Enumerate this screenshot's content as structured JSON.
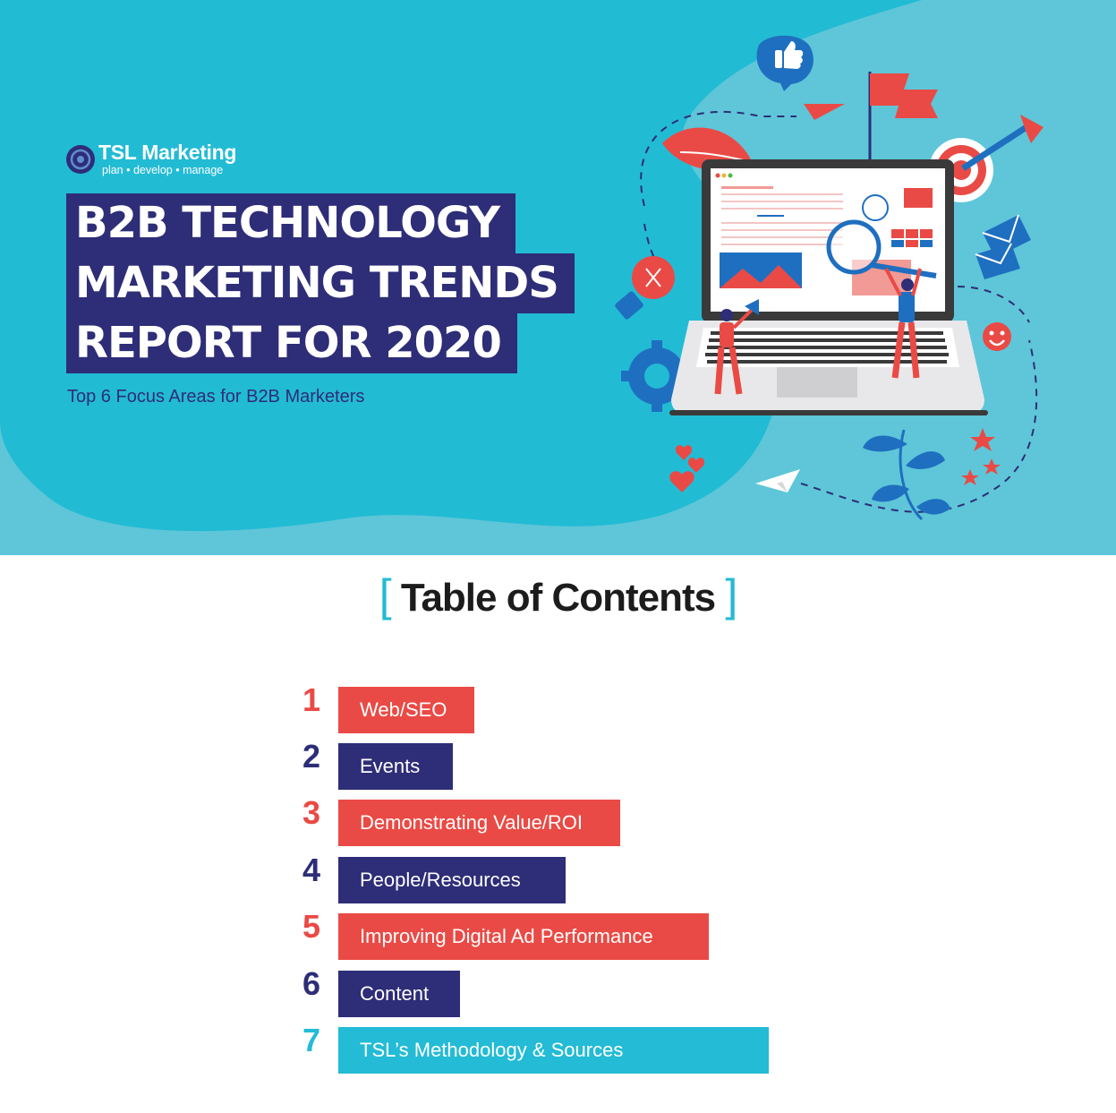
{
  "brand": {
    "name": "TSL Marketing",
    "tagline": "plan • develop • manage"
  },
  "hero": {
    "title_lines": [
      "B2B TECHNOLOGY",
      "MARKETING TRENDS",
      "REPORT FOR 2020"
    ],
    "subtitle": "Top 6 Focus Areas for B2B Marketers"
  },
  "toc": {
    "heading": "Table of Contents",
    "items": [
      {
        "number": "1",
        "label": "Web/SEO",
        "color": "#ea4a45",
        "number_color": "#ea4a45"
      },
      {
        "number": "2",
        "label": "Events",
        "color": "#2e2d77",
        "number_color": "#2e2d77"
      },
      {
        "number": "3",
        "label": "Demonstrating Value/ROI",
        "color": "#ea4a45",
        "number_color": "#ea4a45"
      },
      {
        "number": "4",
        "label": "People/Resources",
        "color": "#2e2d77",
        "number_color": "#2e2d77"
      },
      {
        "number": "5",
        "label": "Improving Digital Ad Performance",
        "color": "#ea4a45",
        "number_color": "#ea4a45"
      },
      {
        "number": "6",
        "label": "Content",
        "color": "#2e2d77",
        "number_color": "#2e2d77"
      },
      {
        "number": "7",
        "label": "TSL’s Methodology & Sources",
        "color": "#23bbd5",
        "number_color": "#23bbd5"
      }
    ]
  },
  "colors": {
    "hero_light": "#5ec6d8",
    "hero_dark": "#22bbd4",
    "navy": "#2e2d77",
    "coral": "#ea4a45",
    "cyan": "#23bbd5"
  }
}
